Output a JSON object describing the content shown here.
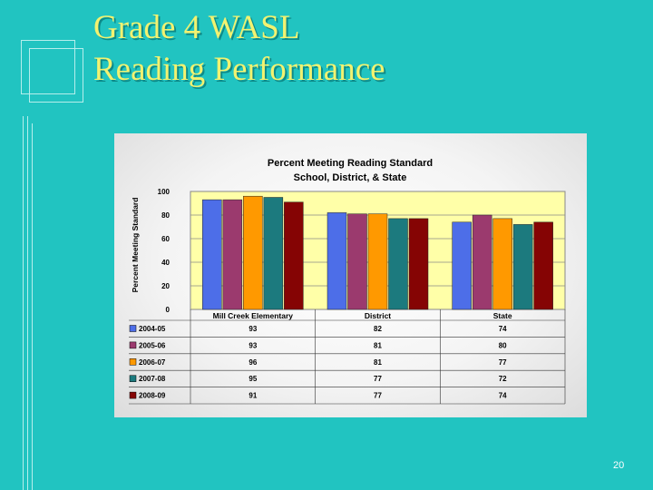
{
  "slide": {
    "title_line1": "Grade 4 WASL",
    "title_line2": "Reading Performance",
    "page_number": "20"
  },
  "colors": {
    "background": "#21c4c1",
    "title": "#f2f270",
    "plot_area": "#ffffa8"
  },
  "chart_data": {
    "type": "bar",
    "title": "Percent Meeting Reading Standard",
    "subtitle": "School, District, & State",
    "ylabel": "Percent Meeting Standard",
    "xlabel": "",
    "ylim": [
      0,
      100
    ],
    "yticks": [
      0,
      20,
      40,
      60,
      80,
      100
    ],
    "grid": true,
    "legend": "data-table-left",
    "categories": [
      "Mill Creek Elementary",
      "District",
      "State"
    ],
    "series": [
      {
        "name": "2004-05",
        "values": [
          93,
          82,
          74
        ],
        "color": "#4d6ee8"
      },
      {
        "name": "2005-06",
        "values": [
          93,
          81,
          80
        ],
        "color": "#9b3a6e"
      },
      {
        "name": "2006-07",
        "values": [
          96,
          81,
          77
        ],
        "color": "#ff9900"
      },
      {
        "name": "2007-08",
        "values": [
          95,
          77,
          72
        ],
        "color": "#1c7a7e"
      },
      {
        "name": "2008-09",
        "values": [
          91,
          77,
          74
        ],
        "color": "#850404"
      }
    ]
  }
}
